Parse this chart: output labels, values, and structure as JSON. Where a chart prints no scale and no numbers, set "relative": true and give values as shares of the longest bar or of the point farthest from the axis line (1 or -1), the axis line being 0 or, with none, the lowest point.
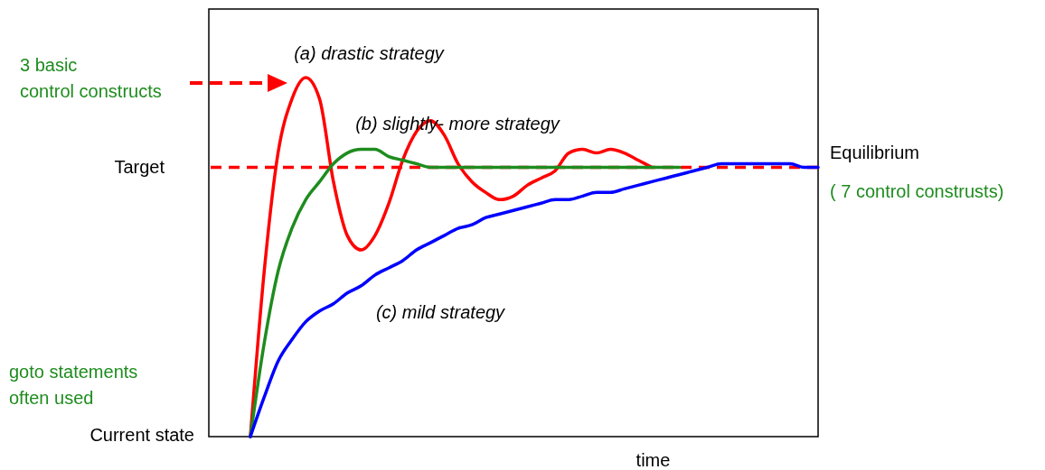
{
  "chart_data": {
    "type": "line",
    "relative": true,
    "xlabel": "time",
    "grid": false,
    "marker": "none",
    "line_style": "solid",
    "categories": [
      null,
      null,
      null,
      null,
      null,
      null,
      null,
      null,
      null,
      null,
      null,
      null,
      null,
      null,
      null,
      null,
      null,
      null,
      null,
      null,
      null,
      null,
      null,
      null,
      null,
      null,
      null,
      null,
      null,
      null,
      null,
      null,
      null,
      null,
      null,
      null,
      null,
      null,
      null,
      null,
      null,
      null,
      null,
      null,
      null
    ],
    "series": [
      {
        "name": "(a) drastic strategy",
        "color": "#ff0000",
        "values": [
          null,
          null,
          null,
          0,
          0.46,
          0.79,
          0.94,
          1,
          0.94,
          0.71,
          0.56,
          0.52,
          0.56,
          0.65,
          0.77,
          0.85,
          0.88,
          0.84,
          0.76,
          0.71,
          0.68,
          0.66,
          0.67,
          0.7,
          0.72,
          0.74,
          0.79,
          0.8,
          0.79,
          0.8,
          0.79,
          0.77,
          0.75,
          null,
          null,
          null,
          null,
          null,
          null,
          null,
          null,
          null,
          null,
          null,
          null
        ]
      },
      {
        "name": "(b) slightly- more strategy",
        "color": "#1e8c1e",
        "values": [
          null,
          null,
          null,
          0,
          0.26,
          0.46,
          0.58,
          0.66,
          0.71,
          0.76,
          0.79,
          0.8,
          0.8,
          0.78,
          0.77,
          0.76,
          0.75,
          0.75,
          0.75,
          0.75,
          0.75,
          0.75,
          0.75,
          0.75,
          0.75,
          0.75,
          0.75,
          0.75,
          0.75,
          0.75,
          0.75,
          0.75,
          0.75,
          0.75,
          0.75,
          null,
          null,
          null,
          null,
          null,
          null,
          null,
          null,
          null,
          null
        ]
      },
      {
        "name": "(c) mild strategy",
        "color": "#0000ff",
        "values": [
          null,
          null,
          null,
          0,
          0.11,
          0.21,
          0.27,
          0.32,
          0.35,
          0.37,
          0.4,
          0.42,
          0.45,
          0.47,
          0.49,
          0.52,
          0.54,
          0.56,
          0.58,
          0.59,
          0.61,
          0.62,
          0.63,
          0.64,
          0.65,
          0.66,
          0.66,
          0.67,
          0.68,
          0.68,
          0.69,
          0.7,
          0.71,
          0.72,
          0.73,
          0.74,
          0.75,
          0.76,
          0.76,
          0.76,
          0.76,
          0.76,
          0.76,
          0.75,
          0.75
        ]
      }
    ],
    "ref_lines": [
      {
        "axis": "y",
        "value": 0.75,
        "label": "Target",
        "color": "#ff0000",
        "line_style": "dashed"
      }
    ],
    "annotations": [
      "3 basic\ncontrol constructs",
      "goto statements\n often used",
      "Current state",
      "Equilibrium",
      "( 7 control construsts)"
    ]
  }
}
